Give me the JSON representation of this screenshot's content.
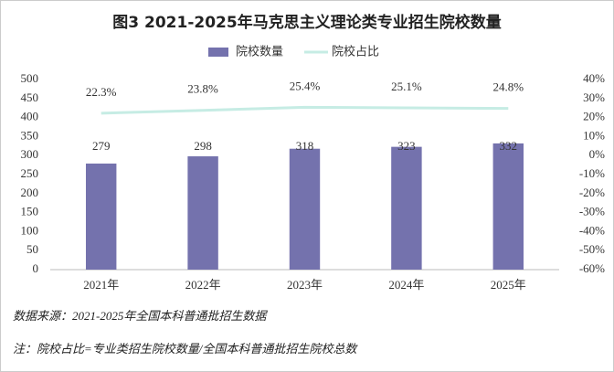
{
  "chart_data": {
    "type": "bar_line",
    "title": "图3  2021-2025年马克思主义理论类专业招生院校数量",
    "categories": [
      "2021年",
      "2022年",
      "2023年",
      "2024年",
      "2025年"
    ],
    "series": [
      {
        "name": "院校数量",
        "type": "bar",
        "color": "#7472ad",
        "values": [
          279,
          298,
          318,
          323,
          332
        ]
      },
      {
        "name": "院校占比",
        "type": "line",
        "axis": "y2",
        "color": "#c6ece4",
        "values": [
          22.3,
          23.8,
          25.4,
          25.1,
          24.8
        ],
        "value_labels": [
          "22.3%",
          "23.8%",
          "25.4%",
          "25.1%",
          "24.8%"
        ]
      }
    ],
    "ylim": [
      0,
      500
    ],
    "yticks": [
      0,
      50,
      100,
      150,
      200,
      250,
      300,
      350,
      400,
      450,
      500
    ],
    "y2lim": [
      -60,
      40
    ],
    "y2ticks": [
      {
        "value": -60,
        "label": "-60%"
      },
      {
        "value": -50,
        "label": "-50%"
      },
      {
        "value": -40,
        "label": "-40%"
      },
      {
        "value": -30,
        "label": "-30%"
      },
      {
        "value": -20,
        "label": "-20%"
      },
      {
        "value": -10,
        "label": "-10%"
      },
      {
        "value": 0,
        "label": "0%"
      },
      {
        "value": 10,
        "label": "10%"
      },
      {
        "value": 20,
        "label": "20%"
      },
      {
        "value": 30,
        "label": "30%"
      },
      {
        "value": 40,
        "label": "40%"
      }
    ],
    "grid": false,
    "legend": "top",
    "notes": [
      "数据来源：2021-2025年全国本科普通批招生数据",
      "注：院校占比=专业类招生院校数量/全国本科普通批招生院校总数"
    ]
  }
}
